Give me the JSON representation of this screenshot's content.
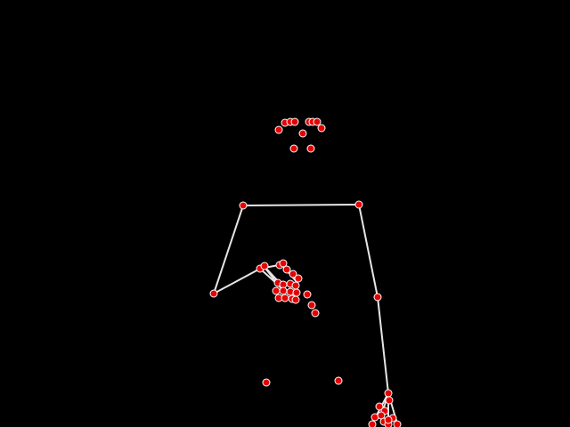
{
  "scene": {
    "type": "pose-skeleton-visualization",
    "background_color": "#000000",
    "bone_color": "#e6e6e6",
    "joint_fill_color": "#e60000",
    "joint_stroke_color": "#ffffff"
  },
  "groups": [
    {
      "name": "face",
      "joint_count": 10
    },
    {
      "name": "body",
      "joint_count": 8
    },
    {
      "name": "left-hand",
      "joint_count": 21
    },
    {
      "name": "right-hand",
      "joint_count": 10
    }
  ]
}
